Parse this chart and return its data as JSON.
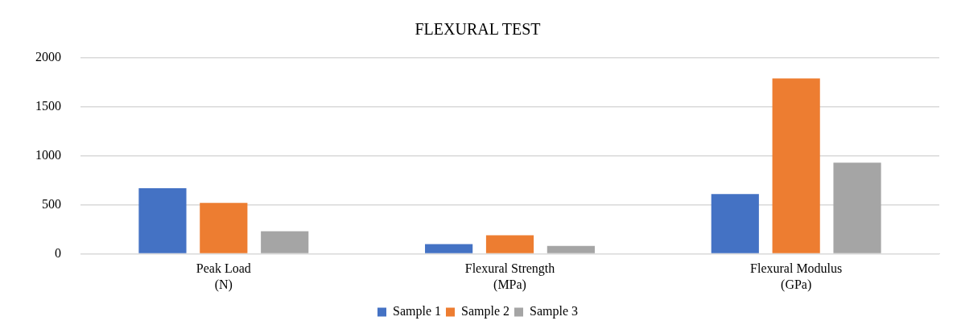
{
  "chart_data": {
    "type": "bar",
    "title": "FLEXURAL TEST",
    "categories": [
      "Peak Load\n(N)",
      "Flexural Strength\n(MPa)",
      "Flexural Modulus\n(GPa)"
    ],
    "series": [
      {
        "name": "Sample 1",
        "color": "#4472c4",
        "values": [
          670,
          100,
          610
        ]
      },
      {
        "name": "Sample 2",
        "color": "#ed7d31",
        "values": [
          520,
          190,
          1790
        ]
      },
      {
        "name": "Sample 3",
        "color": "#a5a5a5",
        "values": [
          230,
          80,
          930
        ]
      }
    ],
    "ylim": [
      0,
      2000
    ],
    "yticks": [
      0,
      500,
      1000,
      1500,
      2000
    ],
    "grid": "y",
    "legend": "bottom"
  }
}
